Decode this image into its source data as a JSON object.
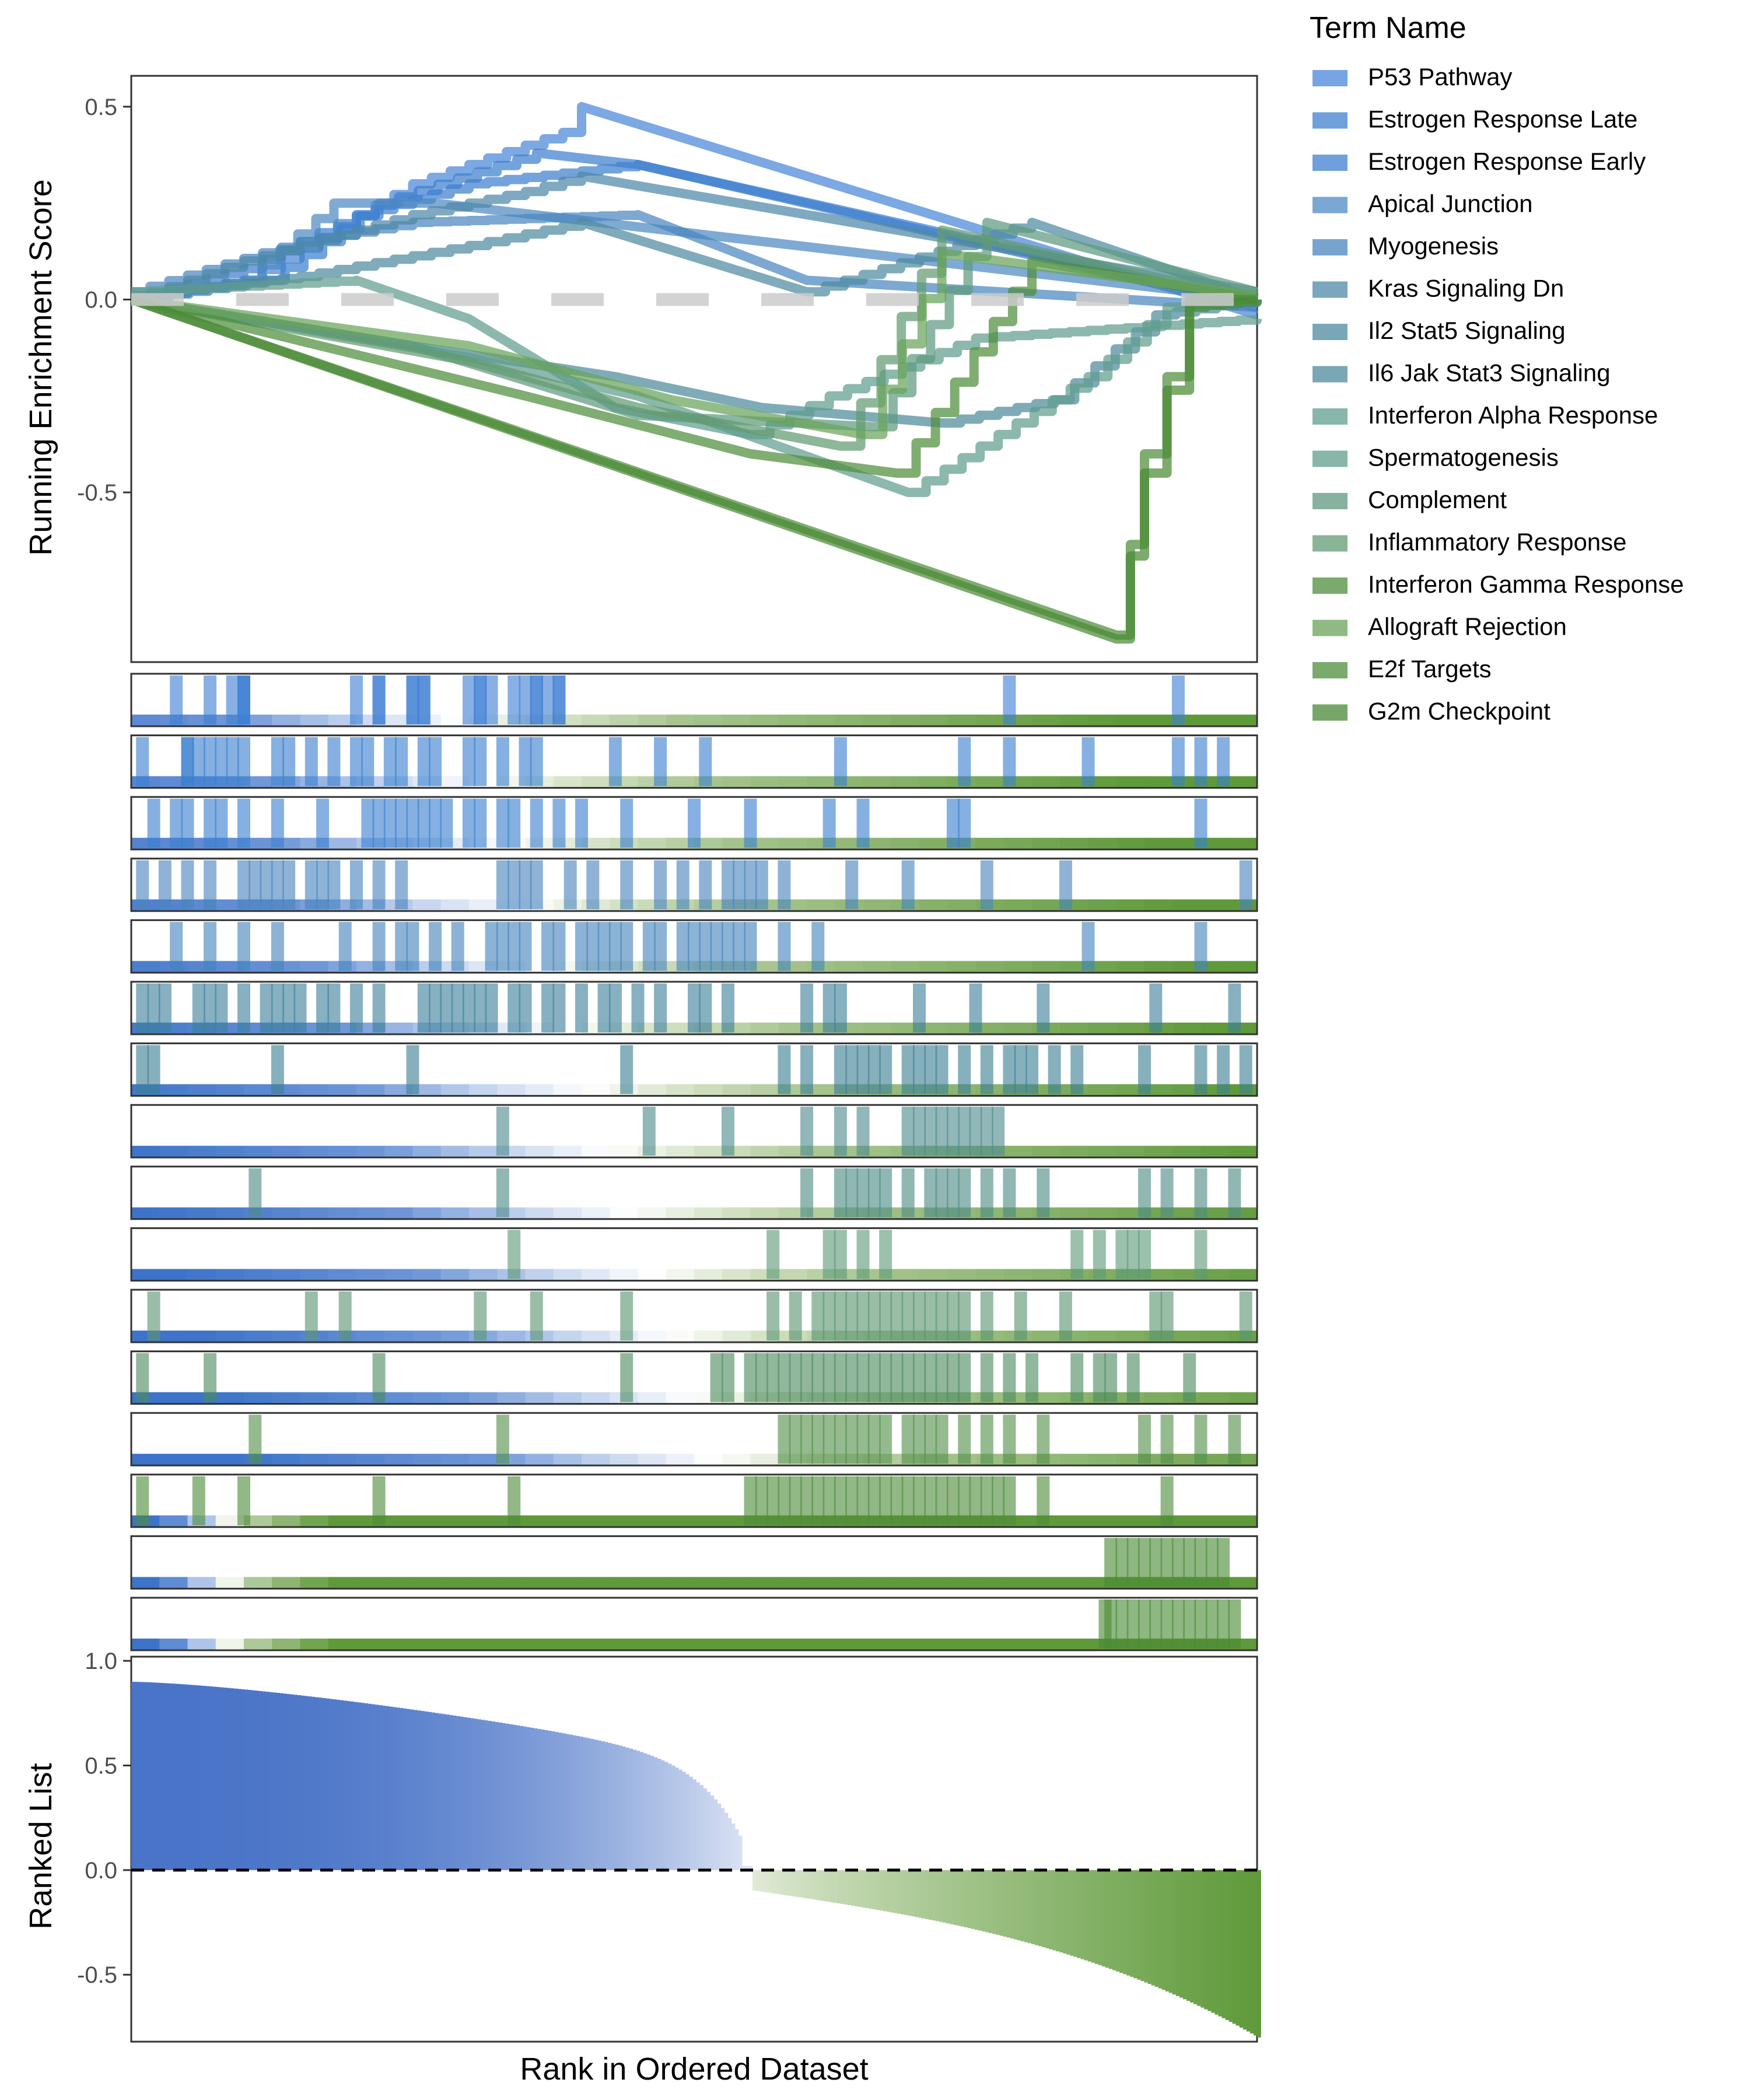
{
  "chart_data": [
    {
      "type": "line",
      "ylabel": "Running Enrichment Score",
      "yticks": [
        0.5,
        0.0,
        -0.5
      ],
      "ytick_labels": [
        "0.5",
        "0.0",
        "-0.5"
      ],
      "ylim": [
        -0.94,
        0.58
      ],
      "xlim": [
        0,
        1
      ],
      "baseline": 0,
      "legend": {
        "title": "Term Name",
        "position": "right",
        "entries": [
          "P53 Pathway",
          "Estrogen Response Late",
          "Estrogen Response Early",
          "Apical Junction",
          "Myogenesis",
          "Kras Signaling Dn",
          "Il2 Stat5 Signaling",
          "Il6 Jak Stat3 Signaling",
          "Interferon Alpha Response",
          "Spermatogenesis",
          "Complement",
          "Inflammatory Response",
          "Interferon Gamma Response",
          "Allograft Rejection",
          "E2f Targets",
          "G2m Checkpoint"
        ]
      },
      "series": [
        {
          "name": "P53 Pathway",
          "color": "#4a86d8",
          "points": [
            [
              0,
              0
            ],
            [
              0.1,
              0.05
            ],
            [
              0.25,
              0.3
            ],
            [
              0.4,
              0.45
            ],
            [
              0.4,
              0.5
            ],
            [
              1,
              -0.04
            ]
          ]
        },
        {
          "name": "Estrogen Response Late",
          "color": "#3f80cf",
          "points": [
            [
              0,
              0
            ],
            [
              0.12,
              0.05
            ],
            [
              0.22,
              0.25
            ],
            [
              0.36,
              0.38
            ],
            [
              0.45,
              0.35
            ],
            [
              1,
              -0.02
            ]
          ]
        },
        {
          "name": "Estrogen Response Early",
          "color": "#3f80cf",
          "points": [
            [
              0,
              0
            ],
            [
              0.1,
              0.08
            ],
            [
              0.2,
              0.22
            ],
            [
              0.3,
              0.3
            ],
            [
              0.45,
              0.35
            ],
            [
              1,
              -0.01
            ]
          ]
        },
        {
          "name": "Apical Junction",
          "color": "#4d89c4",
          "points": [
            [
              0,
              0
            ],
            [
              0.1,
              0.05
            ],
            [
              0.18,
              0.25
            ],
            [
              0.27,
              0.25
            ],
            [
              1,
              0
            ]
          ]
        },
        {
          "name": "Myogenesis",
          "color": "#4a86bf",
          "points": [
            [
              0,
              0.02
            ],
            [
              0.15,
              0.15
            ],
            [
              0.25,
              0.2
            ],
            [
              0.45,
              0.22
            ],
            [
              0.6,
              0.05
            ],
            [
              1,
              -0.02
            ]
          ]
        },
        {
          "name": "Kras Signaling Dn",
          "color": "#4e88a8",
          "points": [
            [
              0,
              0
            ],
            [
              0.1,
              0.1
            ],
            [
              0.25,
              0.22
            ],
            [
              0.35,
              0.28
            ],
            [
              0.4,
              0.32
            ],
            [
              1,
              0.02
            ]
          ]
        },
        {
          "name": "Il2 Stat5 Signaling",
          "color": "#4e8aa0",
          "points": [
            [
              0,
              0.01
            ],
            [
              0.15,
              0.06
            ],
            [
              0.3,
              0.14
            ],
            [
              0.4,
              0.2
            ],
            [
              0.6,
              0.02
            ],
            [
              0.8,
              0.2
            ],
            [
              1,
              0
            ]
          ]
        },
        {
          "name": "Il6 Jak Stat3 Signaling",
          "color": "#4e8a9b",
          "points": [
            [
              0,
              0
            ],
            [
              0.25,
              -0.12
            ],
            [
              0.43,
              -0.2
            ],
            [
              0.56,
              -0.28
            ],
            [
              0.72,
              -0.32
            ],
            [
              0.82,
              -0.26
            ],
            [
              0.91,
              -0.04
            ],
            [
              1,
              0
            ]
          ]
        },
        {
          "name": "Interferon Alpha Response",
          "color": "#5f9d8e",
          "points": [
            [
              0,
              0
            ],
            [
              0.3,
              -0.15
            ],
            [
              0.45,
              -0.25
            ],
            [
              0.69,
              -0.5
            ],
            [
              0.85,
              -0.2
            ],
            [
              0.92,
              -0.02
            ],
            [
              1,
              0
            ]
          ]
        },
        {
          "name": "Spermatogenesis",
          "color": "#5f9d8e",
          "points": [
            [
              0,
              0.02
            ],
            [
              0.2,
              0.05
            ],
            [
              0.3,
              -0.05
            ],
            [
              0.43,
              -0.28
            ],
            [
              0.55,
              -0.35
            ],
            [
              0.62,
              -0.25
            ],
            [
              0.75,
              -0.1
            ],
            [
              1,
              -0.05
            ]
          ]
        },
        {
          "name": "Complement",
          "color": "#5e9a80",
          "points": [
            [
              0,
              0
            ],
            [
              0.25,
              -0.12
            ],
            [
              0.45,
              -0.3
            ],
            [
              0.66,
              -0.33
            ],
            [
              0.76,
              0.2
            ],
            [
              1,
              0.02
            ]
          ]
        },
        {
          "name": "Inflammatory Response",
          "color": "#629b72",
          "points": [
            [
              0,
              0
            ],
            [
              0.3,
              -0.16
            ],
            [
              0.45,
              -0.28
            ],
            [
              0.63,
              -0.38
            ],
            [
              0.72,
              0.18
            ],
            [
              1,
              0
            ]
          ]
        },
        {
          "name": "Interferon Gamma Response",
          "color": "#4f8d3c",
          "points": [
            [
              0,
              0
            ],
            [
              0.35,
              -0.25
            ],
            [
              0.55,
              -0.4
            ],
            [
              0.68,
              -0.45
            ],
            [
              0.8,
              0.1
            ],
            [
              1,
              0
            ]
          ]
        },
        {
          "name": "Allograft Rejection",
          "color": "#6aa45a",
          "points": [
            [
              0,
              0
            ],
            [
              0.3,
              -0.12
            ],
            [
              0.48,
              -0.26
            ],
            [
              0.65,
              -0.35
            ],
            [
              0.72,
              0.12
            ],
            [
              1,
              0.01
            ]
          ]
        },
        {
          "name": "E2f Targets",
          "color": "#4f8d3c",
          "points": [
            [
              0,
              0
            ],
            [
              0.875,
              -0.87
            ],
            [
              0.9,
              -0.4
            ],
            [
              0.94,
              0
            ],
            [
              1,
              0
            ]
          ]
        },
        {
          "name": "G2m Checkpoint",
          "color": "#4a8a35",
          "points": [
            [
              0,
              0
            ],
            [
              0.875,
              -0.88
            ],
            [
              0.9,
              -0.45
            ],
            [
              0.94,
              -0.02
            ],
            [
              1,
              0
            ]
          ]
        }
      ]
    },
    {
      "type": "heatmap",
      "description_rows": 16,
      "rows": [
        {
          "name": "P53 Pathway",
          "hits": [
            0.04,
            0.07,
            0.09,
            0.1,
            0.1,
            0.1,
            0.2,
            0.22,
            0.25,
            0.26,
            0.26,
            0.3,
            0.31,
            0.31,
            0.32,
            0.34,
            0.35,
            0.36,
            0.36,
            0.37,
            0.38,
            0.38,
            0.78,
            0.93,
            0.22,
            0.25
          ],
          "color": "#3f7fd4"
        },
        {
          "name": "Estrogen Response Late",
          "hits": [
            0.01,
            0.05,
            0.05,
            0.06,
            0.07,
            0.08,
            0.09,
            0.1,
            0.13,
            0.14,
            0.16,
            0.18,
            0.2,
            0.21,
            0.23,
            0.24,
            0.26,
            0.27,
            0.3,
            0.31,
            0.33,
            0.35,
            0.36,
            0.43,
            0.47,
            0.51,
            0.63,
            0.74,
            0.78,
            0.85,
            0.93,
            0.95,
            0.97
          ],
          "color": "#3a7fcf"
        },
        {
          "name": "Estrogen Response Early",
          "hits": [
            0.02,
            0.04,
            0.05,
            0.07,
            0.08,
            0.1,
            0.13,
            0.17,
            0.21,
            0.22,
            0.23,
            0.24,
            0.25,
            0.26,
            0.27,
            0.28,
            0.3,
            0.31,
            0.33,
            0.34,
            0.36,
            0.38,
            0.4,
            0.44,
            0.5,
            0.55,
            0.62,
            0.65,
            0.73,
            0.74,
            0.95
          ],
          "color": "#3a7fcf"
        },
        {
          "name": "Apical Junction",
          "hits": [
            0.01,
            0.03,
            0.05,
            0.07,
            0.1,
            0.11,
            0.12,
            0.13,
            0.14,
            0.16,
            0.17,
            0.18,
            0.2,
            0.22,
            0.24,
            0.33,
            0.34,
            0.35,
            0.36,
            0.39,
            0.41,
            0.44,
            0.47,
            0.49,
            0.51,
            0.53,
            0.54,
            0.55,
            0.56,
            0.58,
            0.64,
            0.69,
            0.76,
            0.83,
            0.99
          ],
          "color": "#4885bf"
        },
        {
          "name": "Myogenesis",
          "hits": [
            0.04,
            0.07,
            0.1,
            0.13,
            0.19,
            0.22,
            0.24,
            0.25,
            0.27,
            0.29,
            0.32,
            0.33,
            0.34,
            0.35,
            0.37,
            0.38,
            0.4,
            0.41,
            0.42,
            0.43,
            0.44,
            0.46,
            0.47,
            0.49,
            0.5,
            0.51,
            0.52,
            0.53,
            0.54,
            0.55,
            0.58,
            0.61,
            0.85,
            0.95
          ],
          "color": "#4584bb"
        },
        {
          "name": "Kras Signaling Dn",
          "hits": [
            0.01,
            0.02,
            0.03,
            0.06,
            0.07,
            0.08,
            0.1,
            0.12,
            0.13,
            0.14,
            0.15,
            0.17,
            0.18,
            0.2,
            0.22,
            0.26,
            0.27,
            0.28,
            0.29,
            0.3,
            0.31,
            0.32,
            0.34,
            0.35,
            0.37,
            0.38,
            0.4,
            0.42,
            0.43,
            0.45,
            0.47,
            0.5,
            0.51,
            0.53,
            0.6,
            0.62,
            0.63,
            0.7,
            0.75,
            0.81,
            0.91,
            0.98
          ],
          "color": "#3e7f9b"
        },
        {
          "name": "Il2 Stat5 Signaling",
          "hits": [
            0.01,
            0.02,
            0.13,
            0.25,
            0.44,
            0.58,
            0.6,
            0.63,
            0.64,
            0.65,
            0.66,
            0.67,
            0.69,
            0.7,
            0.71,
            0.72,
            0.74,
            0.76,
            0.78,
            0.79,
            0.8,
            0.82,
            0.84,
            0.9,
            0.95,
            0.97,
            0.99
          ],
          "color": "#3d7f94"
        },
        {
          "name": "Il6 Jak Stat3 Signaling",
          "hits": [
            0.33,
            0.46,
            0.53,
            0.6,
            0.63,
            0.65,
            0.69,
            0.7,
            0.71,
            0.72,
            0.73,
            0.74,
            0.75,
            0.76,
            0.77
          ],
          "color": "#4e8a8d"
        },
        {
          "name": "Interferon Alpha Response",
          "hits": [
            0.11,
            0.33,
            0.6,
            0.63,
            0.64,
            0.65,
            0.66,
            0.67,
            0.69,
            0.71,
            0.72,
            0.73,
            0.74,
            0.76,
            0.78,
            0.81,
            0.9,
            0.92,
            0.95,
            0.98
          ],
          "color": "#4d8a84"
        },
        {
          "name": "Spermatogenesis",
          "hits": [
            0.34,
            0.57,
            0.62,
            0.63,
            0.65,
            0.67,
            0.84,
            0.86,
            0.88,
            0.89,
            0.9,
            0.95
          ],
          "color": "#5d9a77"
        },
        {
          "name": "Complement",
          "hits": [
            0.02,
            0.16,
            0.19,
            0.31,
            0.36,
            0.44,
            0.57,
            0.59,
            0.61,
            0.62,
            0.63,
            0.64,
            0.65,
            0.66,
            0.67,
            0.68,
            0.69,
            0.7,
            0.71,
            0.72,
            0.73,
            0.74,
            0.76,
            0.79,
            0.83,
            0.91,
            0.92,
            0.99
          ],
          "color": "#5b9571"
        },
        {
          "name": "Inflammatory Response",
          "hits": [
            0.01,
            0.07,
            0.22,
            0.44,
            0.52,
            0.53,
            0.55,
            0.56,
            0.57,
            0.58,
            0.59,
            0.6,
            0.61,
            0.62,
            0.63,
            0.64,
            0.65,
            0.66,
            0.67,
            0.68,
            0.69,
            0.7,
            0.71,
            0.72,
            0.73,
            0.74,
            0.76,
            0.78,
            0.8,
            0.84,
            0.86,
            0.87,
            0.89,
            0.94
          ],
          "color": "#4e8b5f"
        },
        {
          "name": "Interferon Gamma Response",
          "hits": [
            0.11,
            0.33,
            0.58,
            0.59,
            0.6,
            0.61,
            0.62,
            0.63,
            0.64,
            0.65,
            0.66,
            0.67,
            0.69,
            0.7,
            0.71,
            0.72,
            0.74,
            0.76,
            0.78,
            0.81,
            0.9,
            0.92,
            0.95,
            0.98
          ],
          "color": "#548f4a"
        },
        {
          "name": "Allograft Rejection",
          "hits": [
            0.01,
            0.06,
            0.1,
            0.22,
            0.34,
            0.55,
            0.56,
            0.57,
            0.58,
            0.59,
            0.6,
            0.61,
            0.62,
            0.63,
            0.64,
            0.65,
            0.66,
            0.67,
            0.68,
            0.69,
            0.7,
            0.71,
            0.72,
            0.73,
            0.74,
            0.75,
            0.76,
            0.77,
            0.78,
            0.81,
            0.92
          ],
          "color": "#4f8d3c"
        },
        {
          "name": "E2f Targets",
          "hits": [
            0.87,
            0.88,
            0.89,
            0.9,
            0.91,
            0.92,
            0.93,
            0.94,
            0.95,
            0.96,
            0.97
          ],
          "color": "#4a8a35"
        },
        {
          "name": "G2m Checkpoint",
          "hits": [
            0.865,
            0.87,
            0.88,
            0.89,
            0.9,
            0.91,
            0.92,
            0.93,
            0.94,
            0.95,
            0.96,
            0.97,
            0.98
          ],
          "color": "#4a8a35"
        }
      ]
    },
    {
      "type": "bar",
      "ylabel": "Ranked List",
      "xlabel": "Rank in Ordered Dataset",
      "yticks": [
        1.0,
        0.5,
        0.0,
        -0.5
      ],
      "ytick_labels": [
        "1.0",
        "0.5",
        "0.0",
        "-0.5"
      ],
      "ylim": [
        -0.82,
        1.02
      ],
      "zero_crossing": 0.55,
      "start_value": 0.9,
      "end_value": -0.8,
      "positive_color": "#4a74c8",
      "negative_color": "#5f9a3a"
    }
  ]
}
